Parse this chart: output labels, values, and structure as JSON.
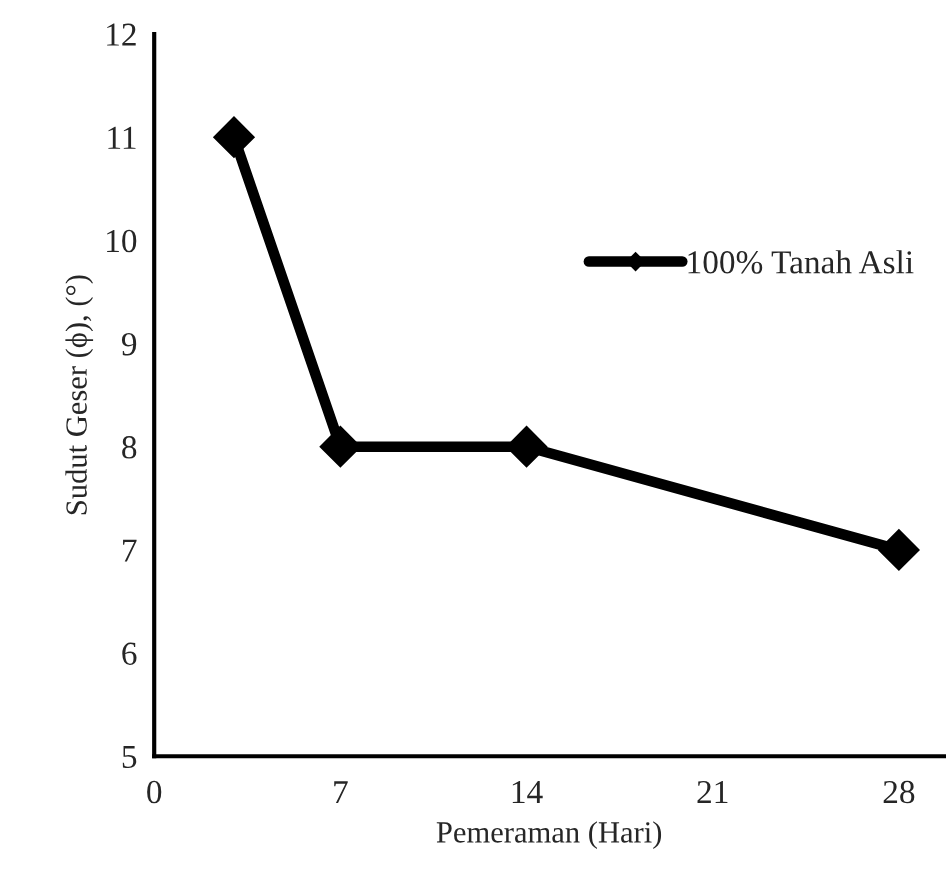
{
  "chart_data": {
    "type": "line",
    "xlabel": "Pemeraman (Hari)",
    "ylabel": "Sudut Geser (ϕ), (°)",
    "x": [
      3,
      7,
      14,
      28
    ],
    "series": [
      {
        "name": "100% Tanah Asli",
        "color": "#000000",
        "values": [
          11,
          8,
          8,
          7
        ]
      }
    ],
    "xlim": [
      0,
      29.7
    ],
    "xticks": [
      0,
      7,
      14,
      21,
      28
    ],
    "ylim": [
      5,
      12
    ],
    "yticks": [
      5,
      6,
      7,
      8,
      9,
      10,
      11,
      12
    ],
    "marker": "diamond",
    "line_style": "solid",
    "grid": false,
    "legend": "right"
  }
}
